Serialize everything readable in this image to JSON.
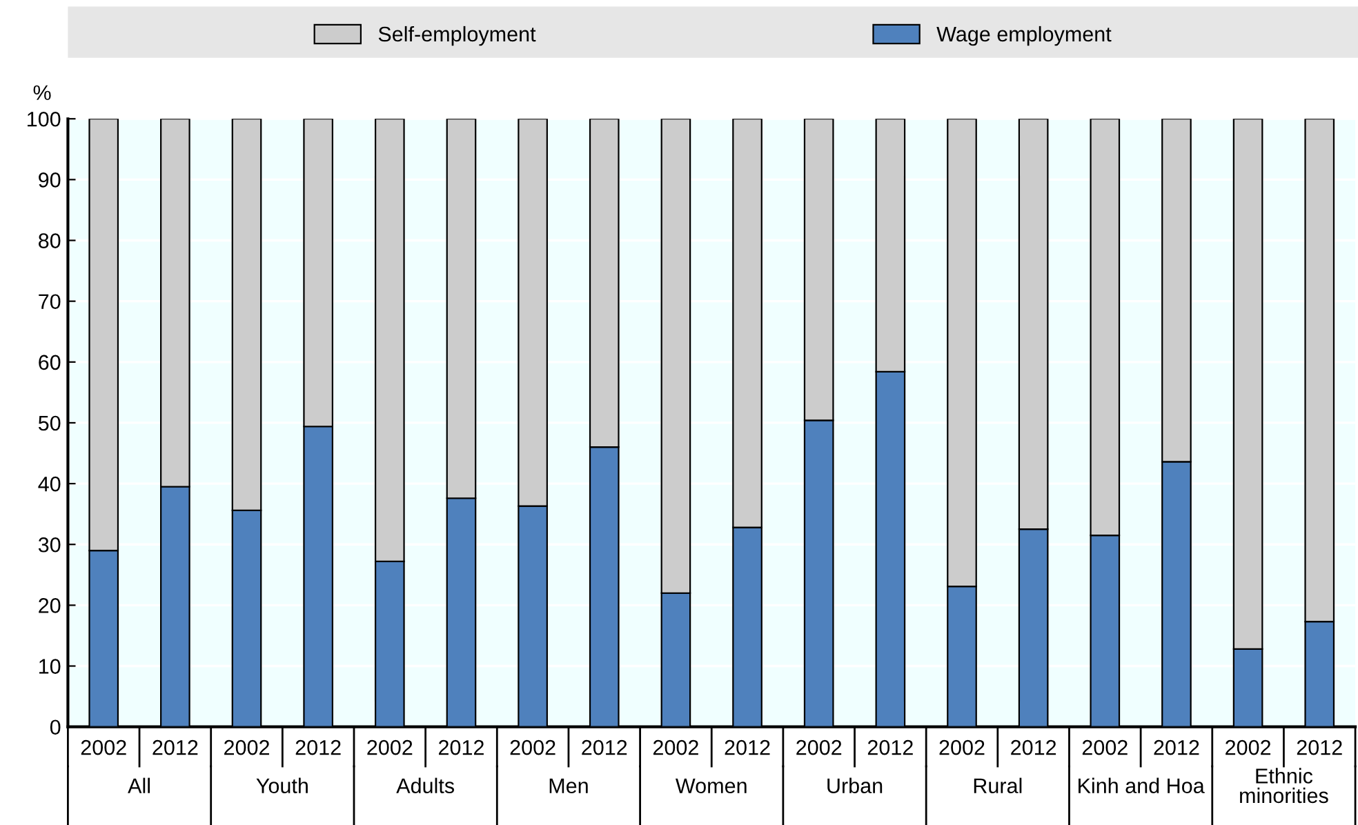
{
  "chart_data": {
    "type": "bar",
    "stacked": true,
    "ylabel": "%",
    "categories": [
      "2002",
      "2012",
      "2002",
      "2012",
      "2002",
      "2012",
      "2002",
      "2012",
      "2002",
      "2012",
      "2002",
      "2012",
      "2002",
      "2012",
      "2002",
      "2012",
      "2002",
      "2012"
    ],
    "series": [
      {
        "name": "Wage employment",
        "color": "#4f81bd",
        "values": [
          29,
          39.5,
          35.6,
          49.4,
          27.2,
          37.6,
          36.3,
          46,
          22,
          32.8,
          50.4,
          58.4,
          23.1,
          32.5,
          31.5,
          43.6,
          12.8,
          17.3
        ]
      },
      {
        "name": "Self-employment",
        "color": "#cccccc",
        "values": [
          71,
          60.5,
          64.4,
          50.6,
          72.8,
          62.4,
          63.7,
          54,
          78,
          67.2,
          49.6,
          41.6,
          76.9,
          67.5,
          68.5,
          56.4,
          87.2,
          82.7
        ]
      }
    ],
    "annotations": [
      "All",
      "Youth",
      "Adults",
      "Men",
      "Women",
      "Urban",
      "Rural",
      "Kinh and Hoa",
      "Ethnic\nminorities"
    ],
    "ylim": [
      0,
      100
    ],
    "yticks": [
      0,
      10,
      20,
      30,
      40,
      50,
      60,
      70,
      80,
      90,
      100
    ],
    "grid": "y",
    "legend": "top"
  }
}
